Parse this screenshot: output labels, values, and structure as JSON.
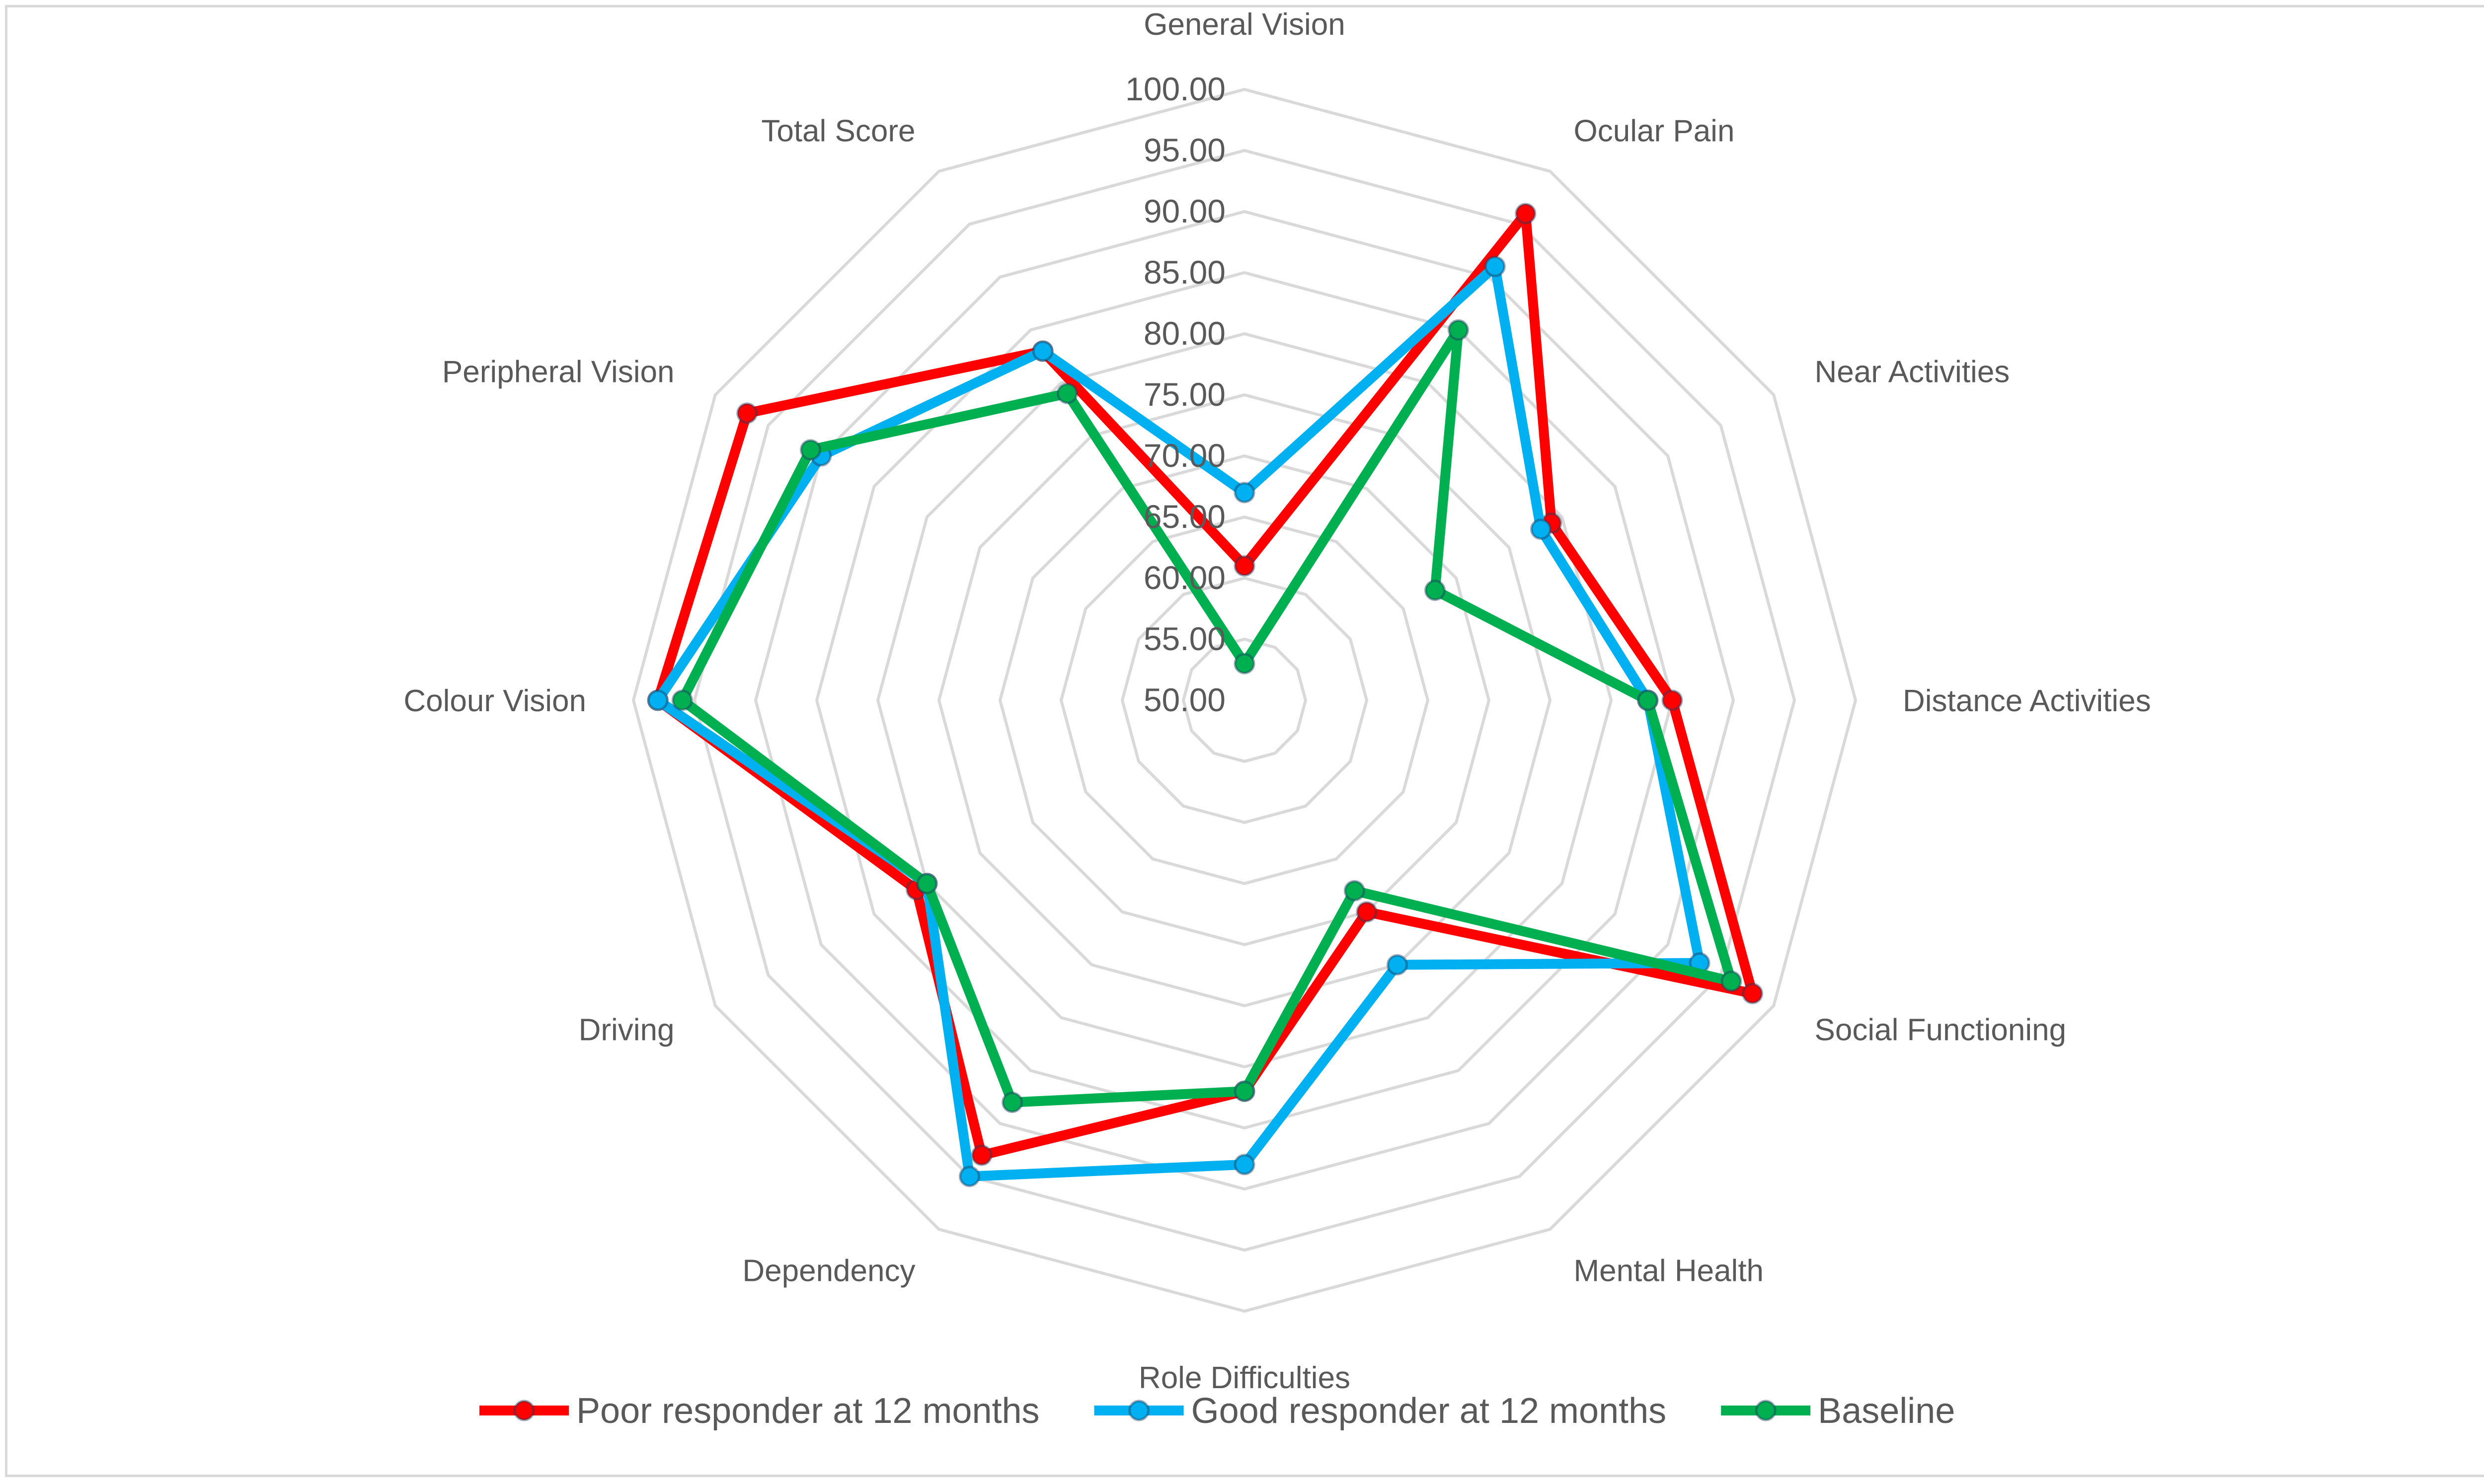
{
  "chart_data": {
    "type": "radar",
    "title": "",
    "axes": [
      "General Vision",
      "Ocular Pain",
      "Near Activities",
      "Distance Activities",
      "Social Functioning",
      "Mental Health",
      "Role Difficulties",
      "Dependency",
      "Driving",
      "Colour Vision",
      "Peripheral Vision",
      "Total Score"
    ],
    "rlim": [
      50,
      100
    ],
    "ticks": [
      "50.00",
      "55.00",
      "60.00",
      "65.00",
      "70.00",
      "75.00",
      "80.00",
      "85.00",
      "90.00",
      "95.00",
      "100.00"
    ],
    "gridlines": true,
    "legend_position": "bottom",
    "series": [
      {
        "name": "Poor responder at 12 months",
        "color": "#ff0000",
        "values": [
          61,
          96,
          79,
          85,
          98,
          70,
          82,
          93,
          81,
          98,
          97,
          83
        ]
      },
      {
        "name": "Good responder at 12 months",
        "color": "#00b0f0",
        "values": [
          67,
          91,
          78,
          83,
          93,
          75,
          88,
          95,
          80,
          98,
          90,
          83
        ]
      },
      {
        "name": "Baseline",
        "color": "#00b050",
        "values": [
          53,
          85,
          68,
          83,
          96,
          68,
          82,
          88,
          80,
          96,
          91,
          79
        ]
      }
    ]
  }
}
